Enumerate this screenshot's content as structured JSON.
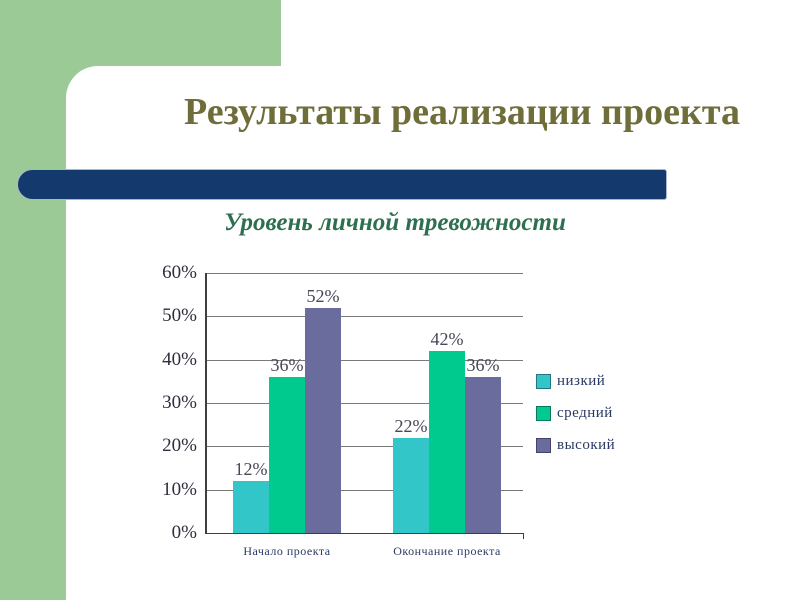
{
  "slide": {
    "title": "Результаты реализации проекта",
    "chart_title": "Уровень личной тревожности"
  },
  "colors": {
    "accent_green": "#9bca97",
    "divider_navy": "#143a6d",
    "title_olive": "#6f6e3a",
    "chart_title_green": "#2e6f52"
  },
  "chart_data": {
    "type": "bar",
    "title": "Уровень личной тревожности",
    "categories": [
      "Начало проекта",
      "Окончание проекта"
    ],
    "series": [
      {
        "name": "низкий",
        "values": [
          12,
          22
        ],
        "labels": [
          "12%",
          "22%"
        ],
        "color": "#33c6c9"
      },
      {
        "name": "средний",
        "values": [
          36,
          42
        ],
        "labels": [
          "36%",
          "42%"
        ],
        "color": "#00ca8d"
      },
      {
        "name": "высокий",
        "values": [
          52,
          36
        ],
        "labels": [
          "52%",
          "36%"
        ],
        "color": "#6a6c9d"
      }
    ],
    "y_ticks": [
      "0%",
      "10%",
      "20%",
      "30%",
      "40%",
      "50%",
      "60%"
    ],
    "ylim": [
      0,
      60
    ],
    "y_step": 10,
    "grid": true,
    "legend_position": "right"
  }
}
